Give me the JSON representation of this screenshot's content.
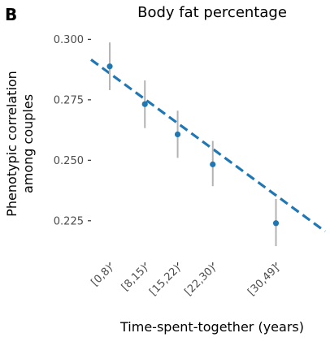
{
  "panel_label": "B",
  "chart_data": {
    "type": "scatter",
    "title": "Body fat percentage",
    "xlabel": "Time-spent-together (years)",
    "ylabel_lines": [
      "Phenotypic correlation",
      "among couples"
    ],
    "x_domain": [
      0,
      50
    ],
    "ylim": [
      0.2115,
      0.3045
    ],
    "y_ticks": [
      0.225,
      0.25,
      0.275,
      0.3
    ],
    "y_tick_labels": [
      "0.225",
      "0.250",
      "0.275",
      "0.300"
    ],
    "grid": false,
    "categories": [
      "[0,8)",
      "[8,15)",
      "[15,22)",
      "[22,30)",
      "[30,49]"
    ],
    "x_positions": [
      4,
      11.5,
      18.5,
      26,
      39.5
    ],
    "series": [
      {
        "values": [
          0.2888,
          0.2732,
          0.2607,
          0.2483,
          0.224
        ],
        "ci_lower": [
          0.279,
          0.2633,
          0.251,
          0.2393,
          0.2145
        ],
        "ci_upper": [
          0.2987,
          0.283,
          0.2705,
          0.258,
          0.234
        ],
        "color": "#1f77b4",
        "errorbar_color": "#b3b3b3"
      }
    ],
    "trend_line": {
      "style": "dashed",
      "color": "#1f77b4",
      "x": [
        0,
        50
      ],
      "y": [
        0.2916,
        0.2206
      ]
    }
  }
}
